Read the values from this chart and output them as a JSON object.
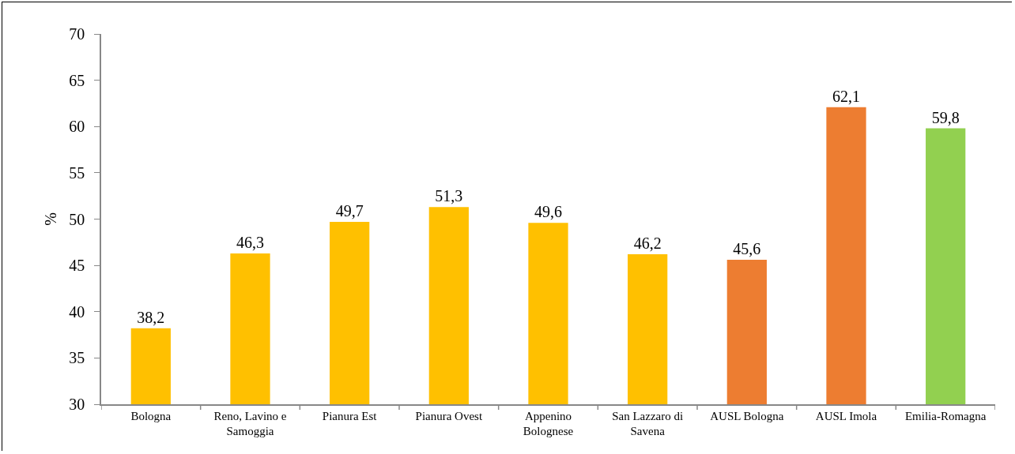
{
  "chart_data": {
    "type": "bar",
    "ylabel": "%",
    "categories": [
      "Bologna",
      "Reno, Lavino e Samoggia",
      "Pianura Est",
      "Pianura Ovest",
      "Appenino Bolognese",
      "San Lazzaro di Savena",
      "AUSL Bologna",
      "AUSL Imola",
      "Emilia-Romagna"
    ],
    "values": [
      38.2,
      46.3,
      49.7,
      51.3,
      49.6,
      46.2,
      45.6,
      62.1,
      59.8
    ],
    "value_labels": [
      "38,2",
      "46,3",
      "49,7",
      "51,3",
      "49,6",
      "46,2",
      "45,6",
      "62,1",
      "59,8"
    ],
    "colors": [
      "#ffc000",
      "#ffc000",
      "#ffc000",
      "#ffc000",
      "#ffc000",
      "#ffc000",
      "#ed7d31",
      "#ed7d31",
      "#92d050"
    ],
    "ylim": [
      30,
      70
    ],
    "yticks": [
      30,
      35,
      40,
      45,
      50,
      55,
      60,
      65,
      70
    ],
    "grid": false,
    "legend": false
  }
}
